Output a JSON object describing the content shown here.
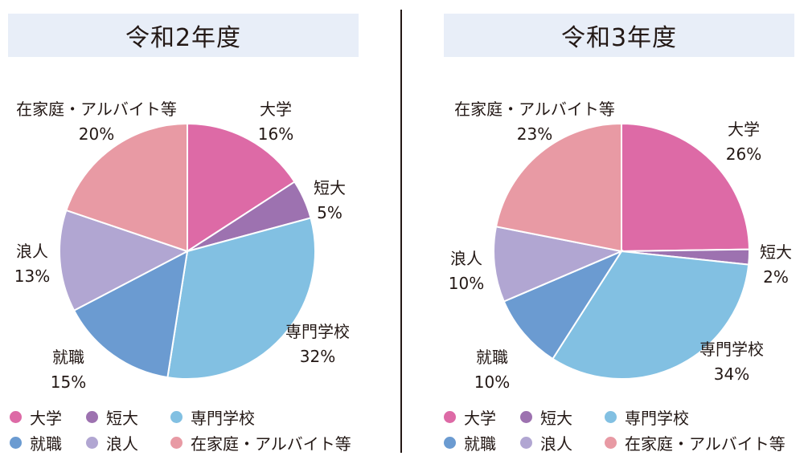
{
  "chart_data": [
    {
      "type": "pie",
      "title": "令和2年度",
      "categories": [
        "大学",
        "短大",
        "専門学校",
        "就職",
        "浪人",
        "在家庭・アルバイト等"
      ],
      "values": [
        16,
        5,
        32,
        15,
        13,
        20
      ],
      "value_labels": [
        "16%",
        "5%",
        "32%",
        "15%",
        "13%",
        "20%"
      ],
      "legend_position": "bottom"
    },
    {
      "type": "pie",
      "title": "令和3年度",
      "categories": [
        "大学",
        "短大",
        "専門学校",
        "就職",
        "浪人",
        "在家庭・アルバイト等"
      ],
      "values": [
        26,
        2,
        34,
        10,
        10,
        23
      ],
      "value_labels": [
        "26%",
        "2%",
        "34%",
        "10%",
        "10%",
        "23%"
      ],
      "legend_position": "bottom"
    }
  ],
  "colors": [
    "#dd6aa6",
    "#9d72b0",
    "#82c0e2",
    "#6b9bd1",
    "#b1a6d2",
    "#e89aa4"
  ],
  "legend": {
    "left": [
      "大学",
      "短大",
      "専門学校",
      "就職",
      "浪人",
      "在家庭・アルバイト等"
    ],
    "right": [
      "大学",
      "短大",
      "専門学校",
      "就職",
      "浪人",
      "在家庭・アルバイト等"
    ]
  }
}
